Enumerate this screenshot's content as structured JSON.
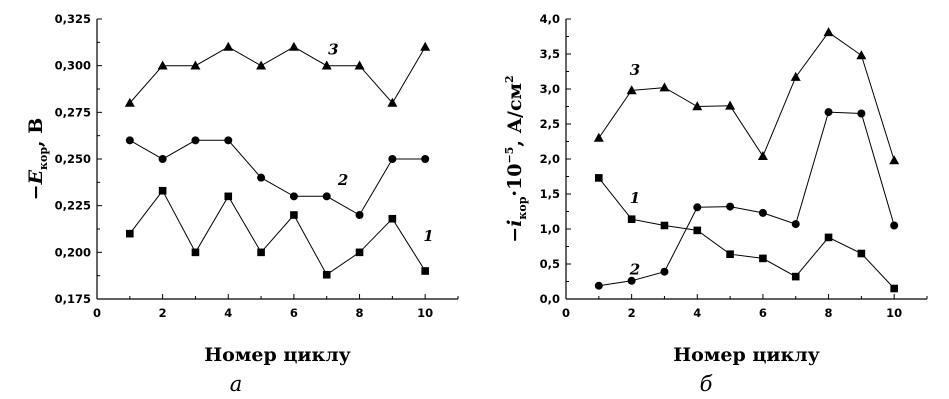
{
  "chart_data": [
    {
      "type": "line",
      "panel_label": "а",
      "xlabel": "Номер циклу",
      "ylabel": {
        "prefix": "−",
        "var": "E",
        "sub": "кор",
        "suffix": ", В"
      },
      "xlim": [
        0,
        11
      ],
      "ylim": [
        0.175,
        0.325
      ],
      "xticks": [
        0,
        2,
        4,
        6,
        8,
        10
      ],
      "xtick_labels": [
        "0",
        "2",
        "4",
        "6",
        "8",
        "10"
      ],
      "yticks": [
        0.175,
        0.2,
        0.225,
        0.25,
        0.275,
        0.3,
        0.325
      ],
      "ytick_labels": [
        "0,175",
        "0,200",
        "0,225",
        "0,250",
        "0,275",
        "0,300",
        "0,325"
      ],
      "x": [
        1,
        2,
        3,
        4,
        5,
        6,
        7,
        8,
        9,
        10
      ],
      "series": [
        {
          "name": "1",
          "marker": "square",
          "values": [
            0.21,
            0.233,
            0.2,
            0.23,
            0.2,
            0.22,
            0.188,
            0.2,
            0.218,
            0.19
          ]
        },
        {
          "name": "2",
          "marker": "circle",
          "values": [
            0.26,
            0.25,
            0.26,
            0.26,
            0.24,
            0.23,
            0.23,
            0.22,
            0.25,
            0.25
          ]
        },
        {
          "name": "3",
          "marker": "triangle",
          "values": [
            0.28,
            0.3,
            0.3,
            0.31,
            0.3,
            0.31,
            0.3,
            0.3,
            0.28,
            0.31
          ]
        }
      ],
      "series_labels": [
        {
          "text": "1",
          "x": 10.1,
          "y": 0.206
        },
        {
          "text": "2",
          "x": 7.5,
          "y": 0.236
        },
        {
          "text": "3",
          "x": 7.2,
          "y": 0.306
        }
      ]
    },
    {
      "type": "line",
      "panel_label": "б",
      "xlabel": "Номер циклу",
      "ylabel": {
        "prefix": "−",
        "var": "i",
        "sub": "кор",
        "mid": "·10",
        "sup": "−5",
        "suffix": ", А/см",
        "sup2": "2"
      },
      "xlim": [
        0,
        11
      ],
      "ylim": [
        0,
        4
      ],
      "xticks": [
        0,
        2,
        4,
        6,
        8,
        10
      ],
      "xtick_labels": [
        "0",
        "2",
        "4",
        "6",
        "8",
        "10"
      ],
      "yticks": [
        0,
        0.5,
        1,
        1.5,
        2,
        2.5,
        3,
        3.5,
        4
      ],
      "ytick_labels": [
        "0,0",
        "0,5",
        "1,0",
        "1,5",
        "2,0",
        "2,5",
        "3,0",
        "3,5",
        "4,0"
      ],
      "x": [
        1,
        2,
        3,
        4,
        5,
        6,
        7,
        8,
        9,
        10
      ],
      "series": [
        {
          "name": "1",
          "marker": "square",
          "values": [
            1.73,
            1.14,
            1.05,
            0.98,
            0.64,
            0.58,
            0.32,
            0.88,
            0.65,
            0.15
          ]
        },
        {
          "name": "2",
          "marker": "circle",
          "values": [
            0.19,
            0.26,
            0.39,
            1.31,
            1.32,
            1.23,
            1.07,
            2.67,
            2.65,
            1.05
          ]
        },
        {
          "name": "3",
          "marker": "triangle",
          "values": [
            2.3,
            2.98,
            3.02,
            2.75,
            2.76,
            2.04,
            3.17,
            3.81,
            3.48,
            1.98
          ]
        }
      ],
      "series_labels": [
        {
          "text": "1",
          "x": 2.1,
          "y": 1.37
        },
        {
          "text": "2",
          "x": 2.1,
          "y": 0.35
        },
        {
          "text": "3",
          "x": 2.1,
          "y": 3.2
        }
      ]
    }
  ]
}
